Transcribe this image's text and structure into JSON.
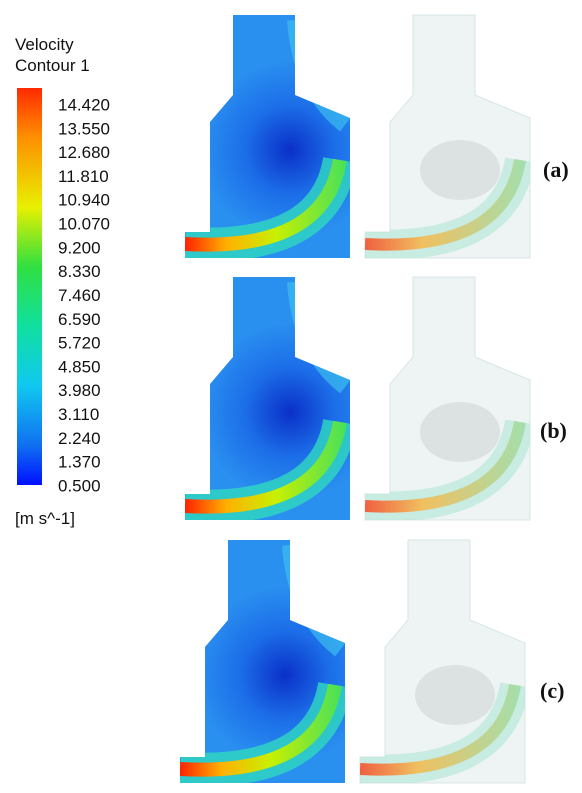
{
  "legend": {
    "title": "Velocity",
    "subtitle": "Contour 1",
    "ticks": [
      "14.420",
      "13.550",
      "12.680",
      "11.810",
      "10.940",
      "10.070",
      "9.200",
      "8.330",
      "7.460",
      "6.590",
      "5.720",
      "4.850",
      "3.980",
      "3.110",
      "2.240",
      "1.370",
      "0.500"
    ],
    "unit": "[m s^-1]"
  },
  "panels": [
    {
      "label": "(a)"
    },
    {
      "label": "(b)"
    },
    {
      "label": "(c)"
    }
  ]
}
